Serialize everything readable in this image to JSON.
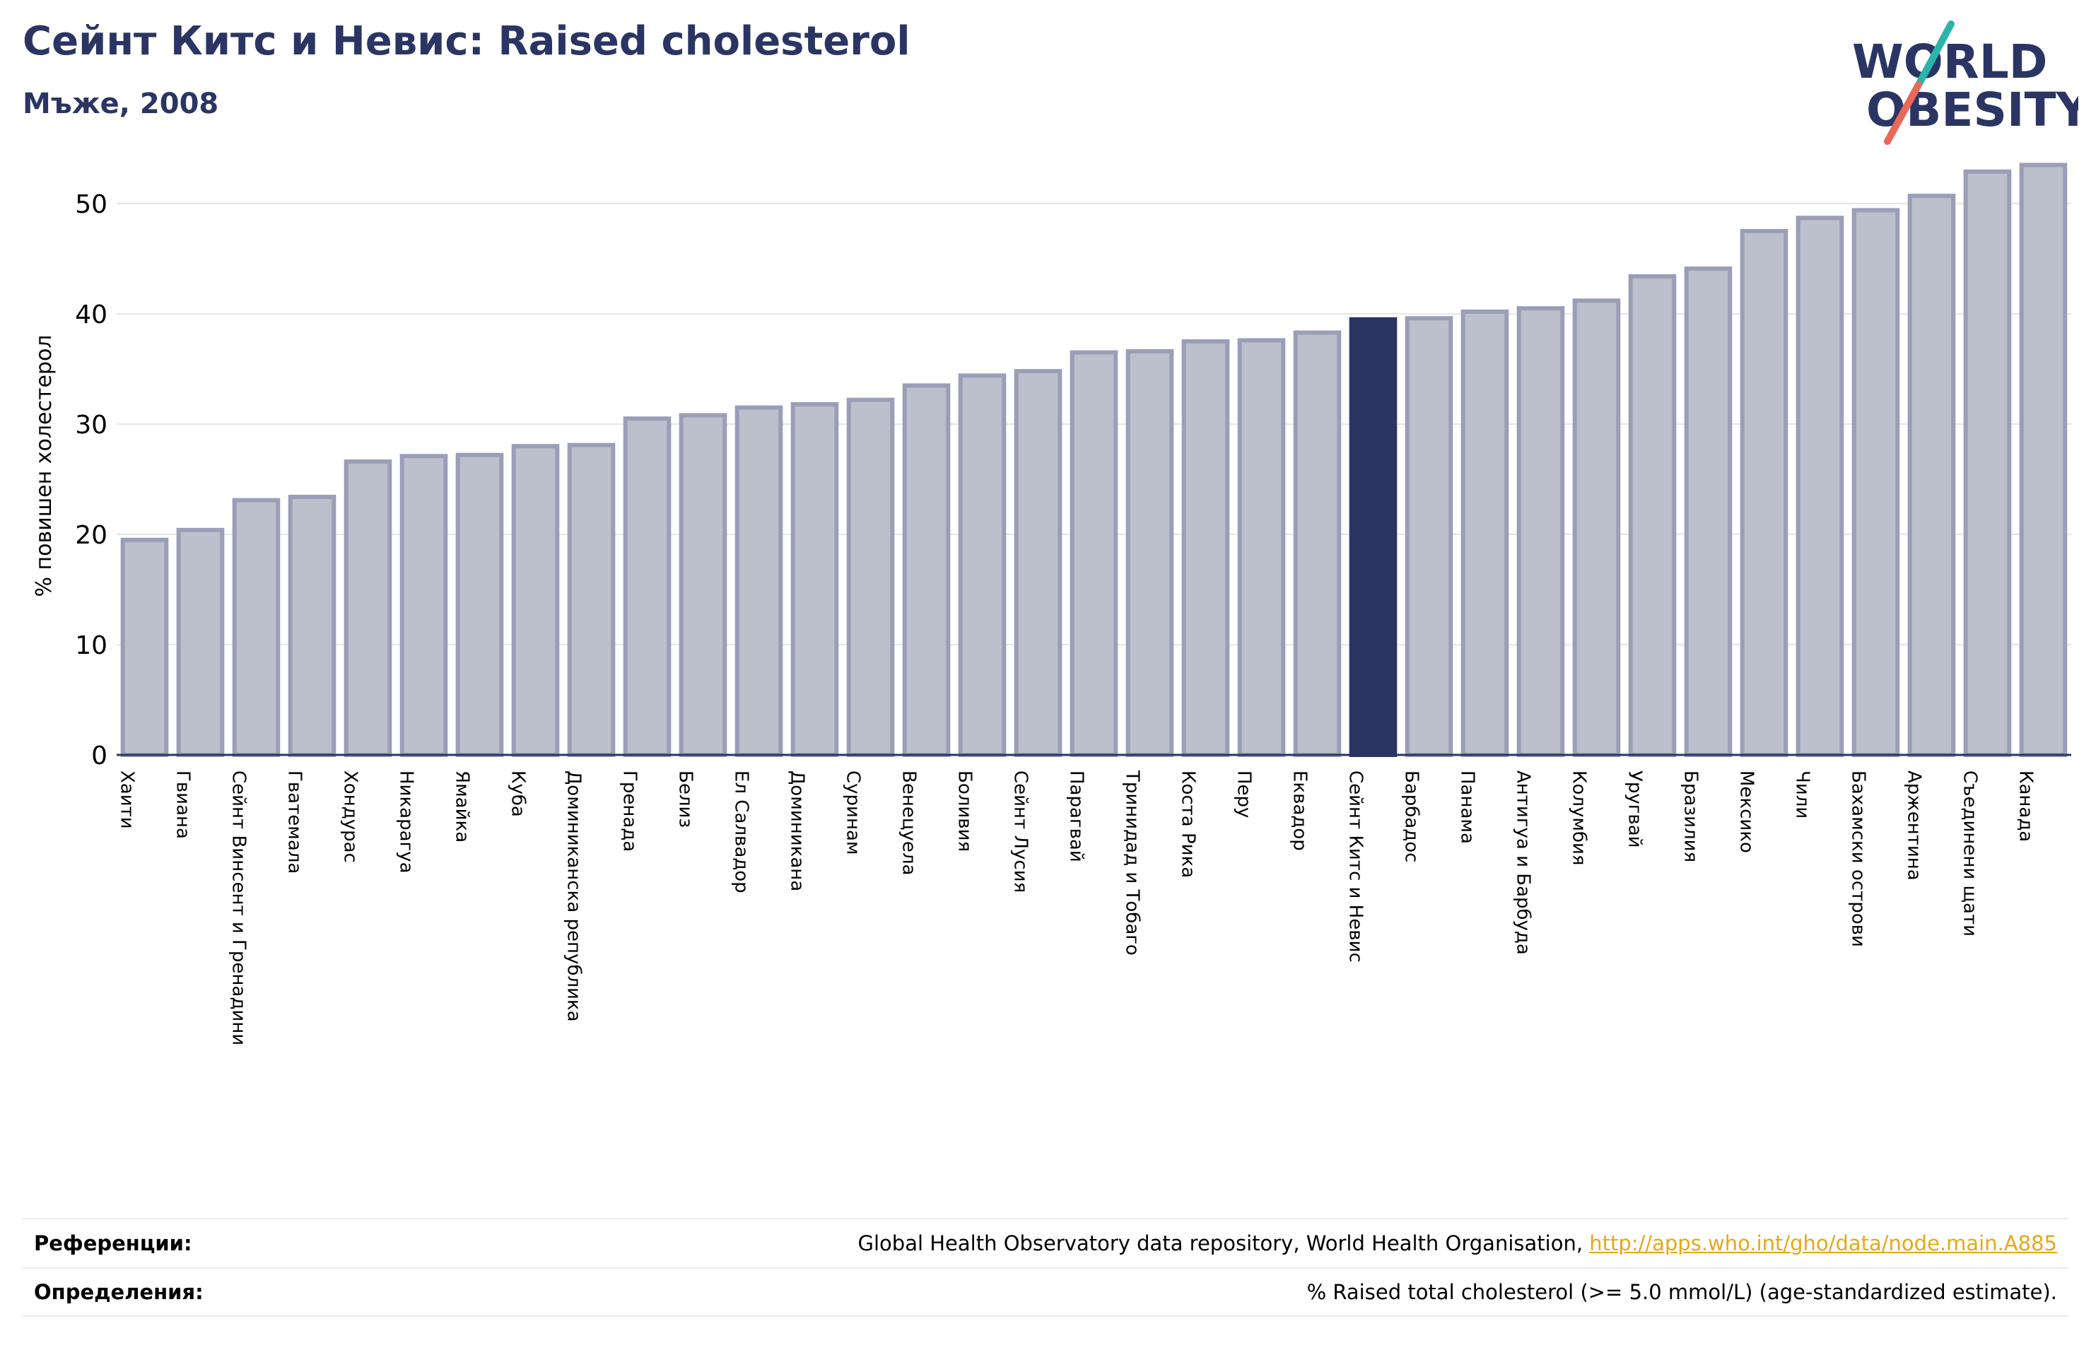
{
  "header": {
    "title": "Сейнт Китс и Невис: Raised cholesterol",
    "subtitle": "Мъже, 2008"
  },
  "logo": {
    "line1": "WORLD",
    "line2": "OBESITY"
  },
  "colors": {
    "bar": "#bcbfcc",
    "bar_border": "#9a9eb6",
    "highlight": "#2b3563",
    "grid": "#e6e6e6",
    "text_dark": "#2b3563",
    "link": "#e6a817"
  },
  "chart_data": {
    "type": "bar",
    "title": "Сейнт Китс и Невис: Raised cholesterol",
    "subtitle": "Мъже, 2008",
    "ylabel": "% повишен холестерол",
    "xlabel": "",
    "ylim": [
      0,
      55
    ],
    "yticks": [
      0,
      10,
      20,
      30,
      40,
      50
    ],
    "grid": true,
    "highlight": "Сейнт Китс и Невис",
    "categories": [
      "Хаити",
      "Гвиана",
      "Сейнт Винсент и Гренадини",
      "Гватемала",
      "Хондурас",
      "Никарагуа",
      "Ямайка",
      "Куба",
      "Доминиканска република",
      "Гренада",
      "Белиз",
      "Ел Салвадор",
      "Доминикана",
      "Суринам",
      "Венецуела",
      "Боливия",
      "Сейнт Лусия",
      "Парагвай",
      "Тринидад и Тобаго",
      "Коста Рика",
      "Перу",
      "Еквадор",
      "Сейнт Китс и Невис",
      "Барбадос",
      "Панама",
      "Антигуа и Барбуда",
      "Колумбия",
      "Уругвай",
      "Бразилия",
      "Мексико",
      "Чили",
      "Бахамски острови",
      "Аржентина",
      "Съединени щати",
      "Канада"
    ],
    "values": [
      19.5,
      20.4,
      23.1,
      23.4,
      26.6,
      27.1,
      27.2,
      28.0,
      28.1,
      30.5,
      30.8,
      31.5,
      31.8,
      32.2,
      33.5,
      34.4,
      34.8,
      36.5,
      36.6,
      37.5,
      37.6,
      38.3,
      39.5,
      39.6,
      40.2,
      40.5,
      41.2,
      43.4,
      44.1,
      47.5,
      48.7,
      49.4,
      50.7,
      52.9,
      53.5
    ]
  },
  "footer": {
    "references_label": "Референции:",
    "references_text": "Global Health Observatory data repository, World Health Organisation, ",
    "references_link": "http://apps.who.int/gho/data/node.main.A885",
    "definitions_label": "Определения:",
    "definitions_text": "% Raised total cholesterol (>= 5.0 mmol/L) (age-standardized estimate)."
  }
}
